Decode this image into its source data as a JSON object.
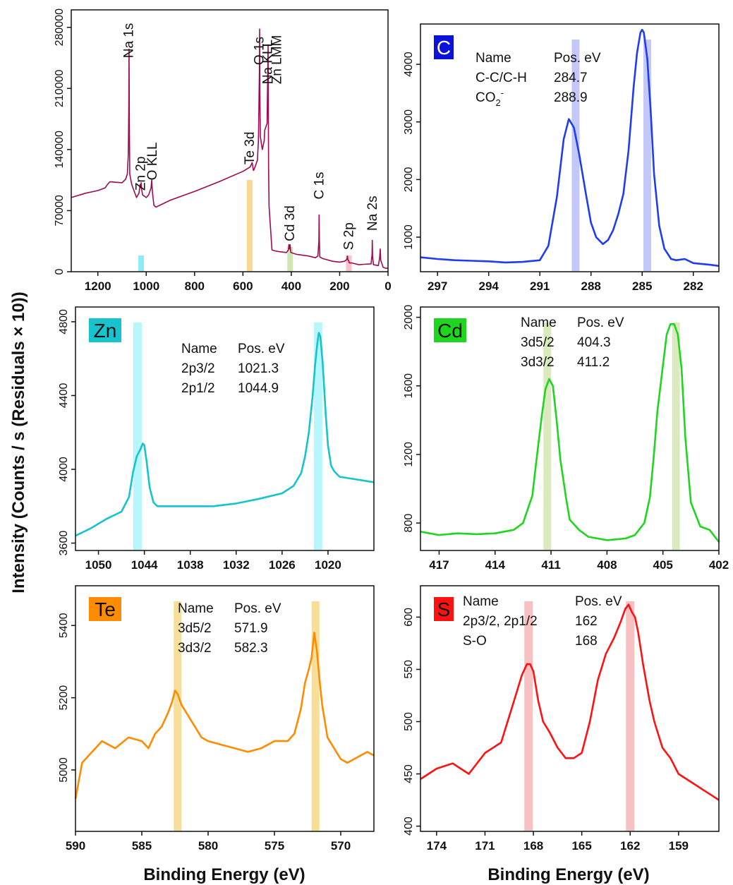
{
  "figure": {
    "ylabel": "Intensity (Counts / s  (Residuals × 10))",
    "xlabel": "Binding Energy (eV)"
  },
  "chart_data": [
    {
      "id": "survey",
      "type": "line",
      "color": "#9e0b55",
      "xlim": [
        1310,
        0
      ],
      "ylim": [
        0,
        300000
      ],
      "xticks": [
        1200,
        1000,
        800,
        600,
        400,
        200,
        0
      ],
      "yticks": [
        0,
        70000,
        140000,
        210000,
        280000
      ],
      "x": [
        1310,
        1250,
        1200,
        1170,
        1160,
        1150,
        1100,
        1085,
        1078,
        1074,
        1072,
        1071,
        1070,
        1068,
        1060,
        1040,
        1030,
        1025,
        1022,
        1021,
        1019,
        1015,
        1000,
        990,
        980,
        977,
        975,
        973,
        968,
        960,
        900,
        850,
        800,
        700,
        600,
        570,
        565,
        562,
        560,
        558,
        556,
        550,
        540,
        536,
        532,
        531,
        530,
        528,
        520,
        512,
        510,
        500,
        497,
        496,
        495,
        494,
        492,
        480,
        470,
        450,
        420,
        412,
        410,
        407,
        405,
        402,
        380,
        330,
        300,
        290,
        286,
        285,
        284,
        282,
        270,
        230,
        200,
        180,
        170,
        168,
        166,
        162,
        160,
        150,
        120,
        100,
        70,
        66,
        65,
        64,
        60,
        40,
        35,
        32,
        30,
        20,
        10,
        0
      ],
      "y": [
        85000,
        90000,
        93000,
        96000,
        100000,
        103000,
        102000,
        106000,
        112000,
        135000,
        190000,
        255000,
        180000,
        112000,
        100000,
        85000,
        90000,
        100000,
        96000,
        102000,
        95000,
        88000,
        85000,
        88000,
        96000,
        105000,
        94000,
        88000,
        76000,
        74000,
        82000,
        87000,
        92000,
        103000,
        115000,
        120000,
        123000,
        125000,
        122000,
        118000,
        116000,
        120000,
        128000,
        150000,
        230000,
        278000,
        210000,
        155000,
        140000,
        150000,
        162000,
        170000,
        240000,
        260000,
        200000,
        120000,
        75000,
        25000,
        24000,
        23000,
        22000,
        25000,
        31000,
        26000,
        31000,
        22000,
        20000,
        18000,
        16000,
        18000,
        35000,
        65000,
        36000,
        17000,
        15000,
        12000,
        11000,
        12000,
        14000,
        18000,
        14000,
        12000,
        10000,
        10000,
        8000,
        8500,
        9000,
        20000,
        36000,
        18000,
        8000,
        7000,
        15000,
        26000,
        13000,
        5000,
        4000,
        4000
      ],
      "highlights": [
        {
          "center": 1021,
          "color": "#7ee8f5"
        },
        {
          "center": 572,
          "color": "#f4d27a"
        },
        {
          "center": 405,
          "color": "#c9e3a6"
        },
        {
          "center": 162,
          "color": "#f7b8bd"
        }
      ],
      "peak_labels": [
        {
          "text": "Na 1s",
          "x": 1072,
          "y": 240000
        },
        {
          "text": "Zn 2p",
          "x": 1022,
          "y": 88000
        },
        {
          "text": "O KLL",
          "x": 975,
          "y": 100000
        },
        {
          "text": "Te 3d",
          "x": 572,
          "y": 118000
        },
        {
          "text": "O 1s",
          "x": 532,
          "y": 232000
        },
        {
          "text": "Na KLL",
          "x": 497,
          "y": 210000
        },
        {
          "text": "Zn LMM",
          "x": 460,
          "y": 210000
        },
        {
          "text": "Cd 3d",
          "x": 405,
          "y": 30000
        },
        {
          "text": "C 1s",
          "x": 285,
          "y": 78000
        },
        {
          "text": "S 2p",
          "x": 162,
          "y": 20000
        },
        {
          "text": "Na 2s",
          "x": 64,
          "y": 42000
        }
      ]
    },
    {
      "id": "C",
      "type": "line",
      "tag": "C",
      "tag_bg": "#0d12d8",
      "tag_fg": "#ffffff",
      "color": "#1f3cf0",
      "xlim": [
        298,
        280.5
      ],
      "ylim": [
        400,
        4700
      ],
      "xticks": [
        297,
        294,
        291,
        288,
        285,
        282
      ],
      "yticks": [
        1000,
        2000,
        3000,
        4000
      ],
      "x": [
        298,
        297,
        296,
        295,
        294,
        293,
        292,
        291,
        290.5,
        290,
        289.6,
        289.3,
        289,
        288.7,
        288.3,
        288,
        287.7,
        287.3,
        287,
        286.7,
        286.4,
        286.1,
        285.8,
        285.5,
        285.3,
        285.1,
        285,
        284.9,
        284.7,
        284.5,
        284.3,
        284,
        283.7,
        283.3,
        283,
        282.5,
        282,
        281,
        280.5
      ],
      "y": [
        650,
        620,
        600,
        590,
        580,
        560,
        570,
        600,
        850,
        1700,
        2700,
        3050,
        2900,
        2450,
        1750,
        1250,
        1000,
        880,
        950,
        1120,
        1400,
        1750,
        2500,
        3600,
        4200,
        4550,
        4600,
        4550,
        4100,
        3200,
        2100,
        1200,
        800,
        620,
        600,
        620,
        550,
        520,
        500
      ],
      "highlights": [
        {
          "center": 288.9,
          "color": "#b8bef7"
        },
        {
          "center": 284.7,
          "color": "#b8bef7"
        }
      ],
      "table": {
        "header": [
          "Name",
          "Pos. eV"
        ],
        "rows": [
          [
            "C-C/C-H",
            "284.7"
          ],
          [
            "CO2-",
            "288.9"
          ]
        ]
      }
    },
    {
      "id": "Zn",
      "type": "line",
      "tag": "Zn",
      "tag_bg": "#17c3cc",
      "tag_fg": "#111111",
      "color": "#17c3cc",
      "xlim": [
        1053,
        1014
      ],
      "ylim": [
        3560,
        4880
      ],
      "xticks": [
        1050,
        1044,
        1038,
        1032,
        1026,
        1020
      ],
      "yticks": [
        3600,
        4000,
        4400,
        4800
      ],
      "x": [
        1053,
        1051,
        1049,
        1047,
        1046,
        1045.5,
        1045,
        1044.5,
        1044.2,
        1044,
        1043.7,
        1043.3,
        1042.8,
        1042.3,
        1041,
        1038,
        1035,
        1032,
        1029,
        1026,
        1024.5,
        1023.5,
        1023,
        1022.5,
        1022,
        1021.7,
        1021.4,
        1021.2,
        1021,
        1020.7,
        1020.3,
        1020,
        1019.6,
        1019.2,
        1018.5,
        1017,
        1015.5,
        1014
      ],
      "y": [
        3640,
        3680,
        3730,
        3770,
        3850,
        3980,
        4070,
        4110,
        4140,
        4130,
        4040,
        3900,
        3820,
        3800,
        3800,
        3800,
        3800,
        3815,
        3840,
        3870,
        3910,
        3980,
        4070,
        4200,
        4400,
        4560,
        4680,
        4740,
        4720,
        4580,
        4300,
        4130,
        4020,
        3990,
        3960,
        3950,
        3940,
        3930
      ],
      "highlights": [
        {
          "center": 1044.9,
          "color": "#a9f4fb"
        },
        {
          "center": 1021.3,
          "color": "#a9f4fb"
        }
      ],
      "table": {
        "header": [
          "Name",
          "Pos. eV"
        ],
        "rows": [
          [
            "2p3/2",
            "1021.3"
          ],
          [
            "2p1/2",
            "1044.9"
          ]
        ]
      }
    },
    {
      "id": "Cd",
      "type": "line",
      "tag": "Cd",
      "tag_bg": "#1fd61f",
      "tag_fg": "#111111",
      "color": "#1fd61f",
      "xlim": [
        418,
        402
      ],
      "ylim": [
        640,
        2060
      ],
      "xticks": [
        417,
        414,
        411,
        408,
        405,
        402
      ],
      "yticks": [
        800,
        1200,
        1600,
        2000
      ],
      "x": [
        418,
        417,
        416,
        415,
        414,
        413,
        412.5,
        412,
        411.8,
        411.5,
        411.3,
        411.1,
        410.9,
        410.7,
        410.5,
        410.2,
        410,
        409.5,
        409,
        408,
        407,
        406.5,
        406,
        405.7,
        405.5,
        405.3,
        405,
        404.8,
        404.6,
        404.4,
        404.2,
        404,
        403.8,
        403.5,
        403,
        402.5,
        402
      ],
      "y": [
        750,
        730,
        740,
        735,
        740,
        760,
        800,
        960,
        1150,
        1420,
        1580,
        1640,
        1600,
        1400,
        1170,
        950,
        820,
        760,
        720,
        700,
        710,
        730,
        800,
        950,
        1180,
        1450,
        1720,
        1900,
        1960,
        1960,
        1900,
        1700,
        1300,
        920,
        780,
        760,
        690
      ],
      "highlights": [
        {
          "center": 411.2,
          "color": "#d4e6b3"
        },
        {
          "center": 404.3,
          "color": "#d4e6b3"
        }
      ],
      "table": {
        "header": [
          "Name",
          "Pos. eV"
        ],
        "rows": [
          [
            "3d5/2",
            "404.3"
          ],
          [
            "3d3/2",
            "411.2"
          ]
        ]
      }
    },
    {
      "id": "Te",
      "type": "line",
      "tag": "Te",
      "tag_bg": "#ff8c00",
      "tag_fg": "#111111",
      "color": "#ff8c00",
      "xlim": [
        590,
        567.5
      ],
      "ylim": [
        4830,
        5510
      ],
      "xticks": [
        590,
        585,
        580,
        575,
        570
      ],
      "yticks": [
        5000,
        5200,
        5400
      ],
      "x": [
        590,
        589.5,
        589,
        588,
        587,
        586,
        585,
        584.5,
        584,
        583.5,
        583,
        582.7,
        582.5,
        582.3,
        582,
        581.5,
        581,
        580.5,
        580,
        579,
        578,
        577,
        576,
        575,
        574,
        573.5,
        573,
        572.7,
        572.4,
        572.2,
        572,
        571.8,
        571.6,
        571.4,
        571,
        570.5,
        570,
        569.5,
        569,
        568,
        567.5
      ],
      "y": [
        4920,
        5020,
        5040,
        5080,
        5060,
        5090,
        5080,
        5060,
        5100,
        5120,
        5160,
        5190,
        5220,
        5210,
        5180,
        5150,
        5120,
        5090,
        5080,
        5070,
        5060,
        5050,
        5060,
        5080,
        5080,
        5100,
        5170,
        5240,
        5280,
        5310,
        5380,
        5330,
        5250,
        5180,
        5090,
        5060,
        5030,
        5020,
        5030,
        5050,
        5040
      ],
      "highlights": [
        {
          "center": 582.3,
          "color": "#f4d98a"
        },
        {
          "center": 571.9,
          "color": "#f4d98a"
        }
      ],
      "table": {
        "header": [
          "Name",
          "Pos. eV"
        ],
        "rows": [
          [
            "3d5/2",
            "571.9"
          ],
          [
            "3d3/2",
            "582.3"
          ]
        ]
      }
    },
    {
      "id": "S",
      "type": "line",
      "tag": "S",
      "tag_bg": "#ff1111",
      "tag_fg": "#111111",
      "color": "#ff1111",
      "xlim": [
        175,
        156.5
      ],
      "ylim": [
        395,
        630
      ],
      "xticks": [
        174,
        171,
        168,
        165,
        162,
        159
      ],
      "yticks": [
        400,
        450,
        500,
        550,
        600
      ],
      "x": [
        175,
        174,
        173,
        172,
        171,
        170,
        169.5,
        169,
        168.7,
        168.4,
        168.2,
        168,
        167.7,
        167.4,
        167,
        166.5,
        166,
        165.5,
        165,
        164.5,
        164,
        163.5,
        163,
        162.6,
        162.3,
        162.1,
        161.9,
        161.7,
        161.5,
        161.2,
        160.8,
        160.5,
        160,
        159.5,
        159,
        158.5,
        158,
        157.5,
        157,
        156.5
      ],
      "y": [
        445,
        455,
        460,
        450,
        470,
        480,
        505,
        530,
        545,
        555,
        555,
        548,
        520,
        500,
        490,
        475,
        465,
        465,
        470,
        500,
        540,
        565,
        580,
        595,
        608,
        612,
        605,
        600,
        585,
        555,
        520,
        500,
        475,
        465,
        450,
        445,
        440,
        435,
        430,
        425
      ],
      "highlights": [
        {
          "center": 168.3,
          "color": "#f7b6b6"
        },
        {
          "center": 162,
          "color": "#f7b6b6"
        }
      ],
      "table": {
        "header": [
          "Name",
          "Pos. eV"
        ],
        "rows": [
          [
            "2p3/2, 2p1/2",
            "162"
          ],
          [
            "S-O",
            "168"
          ]
        ]
      }
    }
  ]
}
